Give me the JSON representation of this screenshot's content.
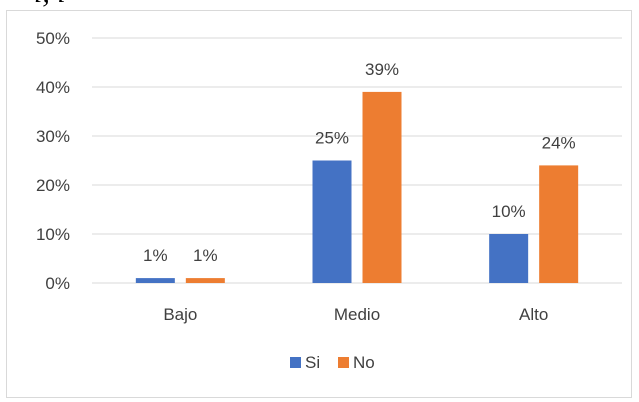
{
  "top_fragment": "i, i",
  "colors": {
    "series_si": "#4472c4",
    "series_no": "#ed7d31",
    "grid": "#d9d9d9",
    "text": "#404040"
  },
  "chart_data": {
    "type": "bar",
    "title": "",
    "xlabel": "",
    "ylabel": "",
    "categories": [
      "Bajo",
      "Medio",
      "Alto"
    ],
    "series": [
      {
        "name": "Si",
        "values": [
          1,
          25,
          10
        ],
        "labels": [
          "1%",
          "25%",
          "10%"
        ]
      },
      {
        "name": "No",
        "values": [
          1,
          39,
          24
        ],
        "labels": [
          "1%",
          "39%",
          "24%"
        ]
      }
    ],
    "ylim": [
      0,
      50
    ],
    "yticks": [
      0,
      10,
      20,
      30,
      40,
      50
    ],
    "ytick_labels": [
      "0%",
      "10%",
      "20%",
      "30%",
      "40%",
      "50%"
    ],
    "grid": true,
    "legend_position": "bottom"
  }
}
